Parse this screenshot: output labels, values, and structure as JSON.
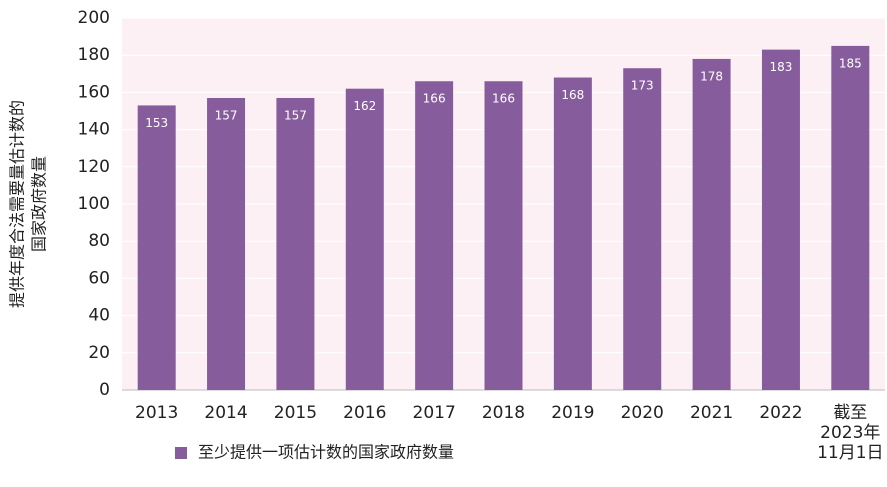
{
  "chart_data": {
    "type": "bar",
    "y_label": [
      "提供年度合法需要量估计数的",
      "国家政府数量"
    ],
    "categories": [
      "2013",
      "2014",
      "2015",
      "2016",
      "2017",
      "2018",
      "2019",
      "2020",
      "2021",
      "2022",
      [
        "截至",
        "2023年",
        "11月1日"
      ]
    ],
    "series": [
      {
        "name": "至少提供一项估计数的国家政府数量",
        "color": "#875c9c",
        "values": [
          153,
          157,
          157,
          162,
          166,
          166,
          168,
          173,
          178,
          183,
          185
        ]
      }
    ],
    "ylim": [
      0,
      200
    ],
    "yticks": [
      0,
      20,
      40,
      60,
      80,
      100,
      120,
      140,
      160,
      180,
      200
    ],
    "grid": true,
    "plot_background": "#fdf0f4"
  }
}
